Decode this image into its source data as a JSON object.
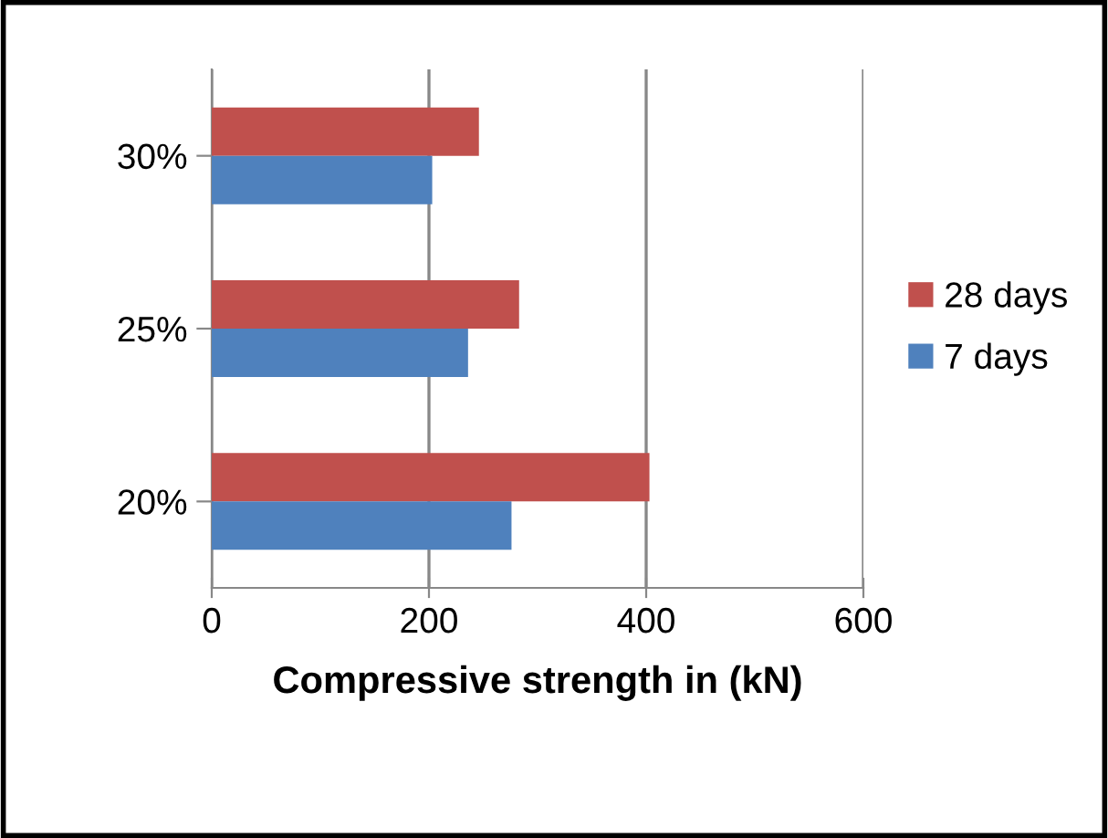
{
  "chart_data": {
    "type": "bar",
    "orientation": "horizontal",
    "xlabel": "Compressive strength in (kN)",
    "categories": [
      "30%",
      "25%",
      "20%"
    ],
    "series": [
      {
        "name": "28 days",
        "color": "#c0504d",
        "values": [
          246,
          283,
          403
        ]
      },
      {
        "name": "7 days",
        "color": "#4f81bd",
        "values": [
          203,
          236,
          276
        ]
      }
    ],
    "xlim": [
      0,
      600
    ],
    "xticks": [
      0,
      200,
      400,
      600
    ],
    "grid": "x",
    "legend": "right"
  }
}
